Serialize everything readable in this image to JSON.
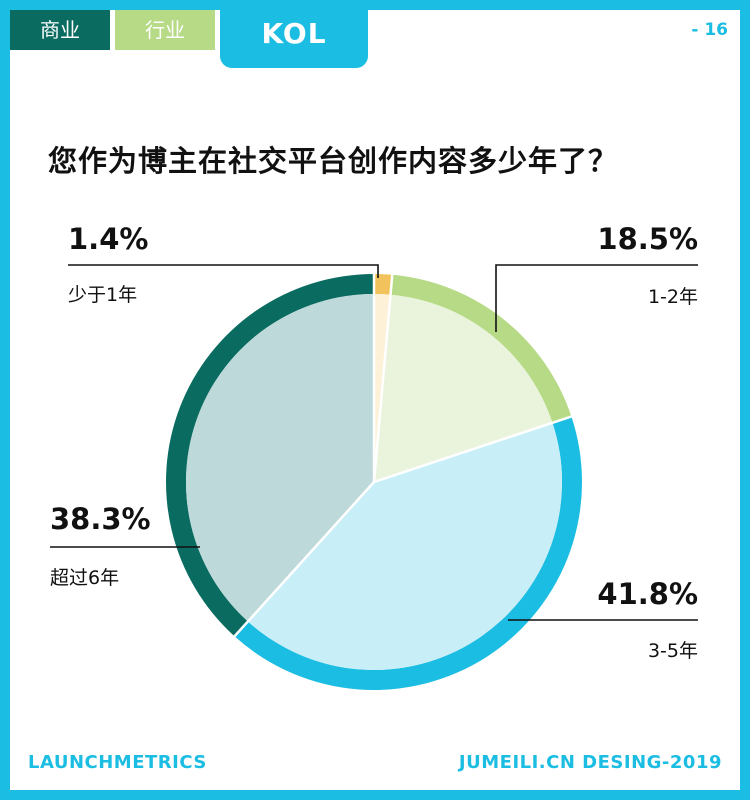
{
  "tabs": {
    "business": "商业",
    "industry": "行业",
    "kol": "KOL"
  },
  "page_number": "- 16",
  "question": "您作为博主在社交平台创作内容多少年了？",
  "footer": {
    "left": "LAUNCHMETRICS",
    "right": "JUMEILI.CN DESING-2019"
  },
  "colors": {
    "frame": "#1bbde2",
    "tab_business": "#0a6b61",
    "tab_industry": "#b6da85"
  },
  "chart_data": {
    "type": "pie",
    "title": "您作为博主在社交平台创作内容多少年了？",
    "slices": [
      {
        "label": "少于1年",
        "value": 1.4,
        "display": "1.4%",
        "ring": "#f2c35c",
        "fill": "#fdf1d8"
      },
      {
        "label": "1-2年",
        "value": 18.5,
        "display": "18.5%",
        "ring": "#b6da85",
        "fill": "#eaf4dd"
      },
      {
        "label": "3-5年",
        "value": 41.8,
        "display": "41.8%",
        "ring": "#1bbde2",
        "fill": "#c8eef8"
      },
      {
        "label": "超过6年",
        "value": 38.3,
        "display": "38.3%",
        "ring": "#0a6b61",
        "fill": "#bdd9d9"
      }
    ]
  }
}
